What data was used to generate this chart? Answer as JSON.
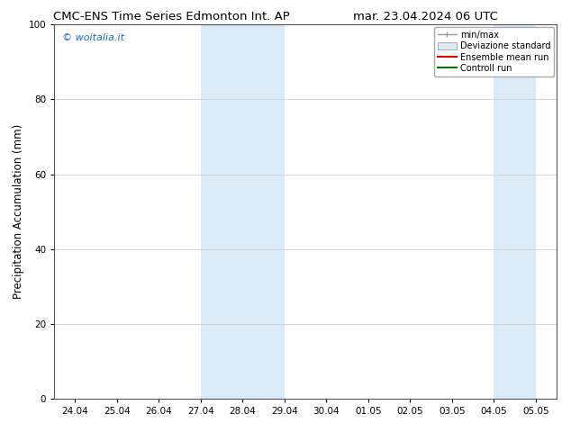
{
  "title_left": "CMC-ENS Time Series Edmonton Int. AP",
  "title_right": "mar. 23.04.2024 06 UTC",
  "ylabel": "Precipitation Accumulation (mm)",
  "ylim": [
    0,
    100
  ],
  "background_color": "#ffffff",
  "plot_bg_color": "#ffffff",
  "shade_color": "#daeaf7",
  "watermark_text": "© woitalia.it",
  "watermark_color": "#1a6abf",
  "legend_items": [
    "min/max",
    "Deviazione standard",
    "Ensemble mean run",
    "Controll run"
  ],
  "legend_line_colors": [
    "#999999",
    "#bbccdd",
    "#dd0000",
    "#007700"
  ],
  "shaded_regions": [
    {
      "x_start": 3,
      "x_end": 5
    },
    {
      "x_start": 10,
      "x_end": 11
    }
  ],
  "x_tick_labels": [
    "24.04",
    "25.04",
    "26.04",
    "27.04",
    "28.04",
    "29.04",
    "30.04",
    "01.05",
    "02.05",
    "03.05",
    "04.05",
    "05.05"
  ],
  "x_tick_positions": [
    0,
    1,
    2,
    3,
    4,
    5,
    6,
    7,
    8,
    9,
    10,
    11
  ],
  "yticks": [
    0,
    20,
    40,
    60,
    80,
    100
  ],
  "grid_color": "#cccccc",
  "title_fontsize": 9.5,
  "ylabel_fontsize": 8.5,
  "tick_fontsize": 7.5,
  "watermark_fontsize": 8,
  "legend_fontsize": 7
}
